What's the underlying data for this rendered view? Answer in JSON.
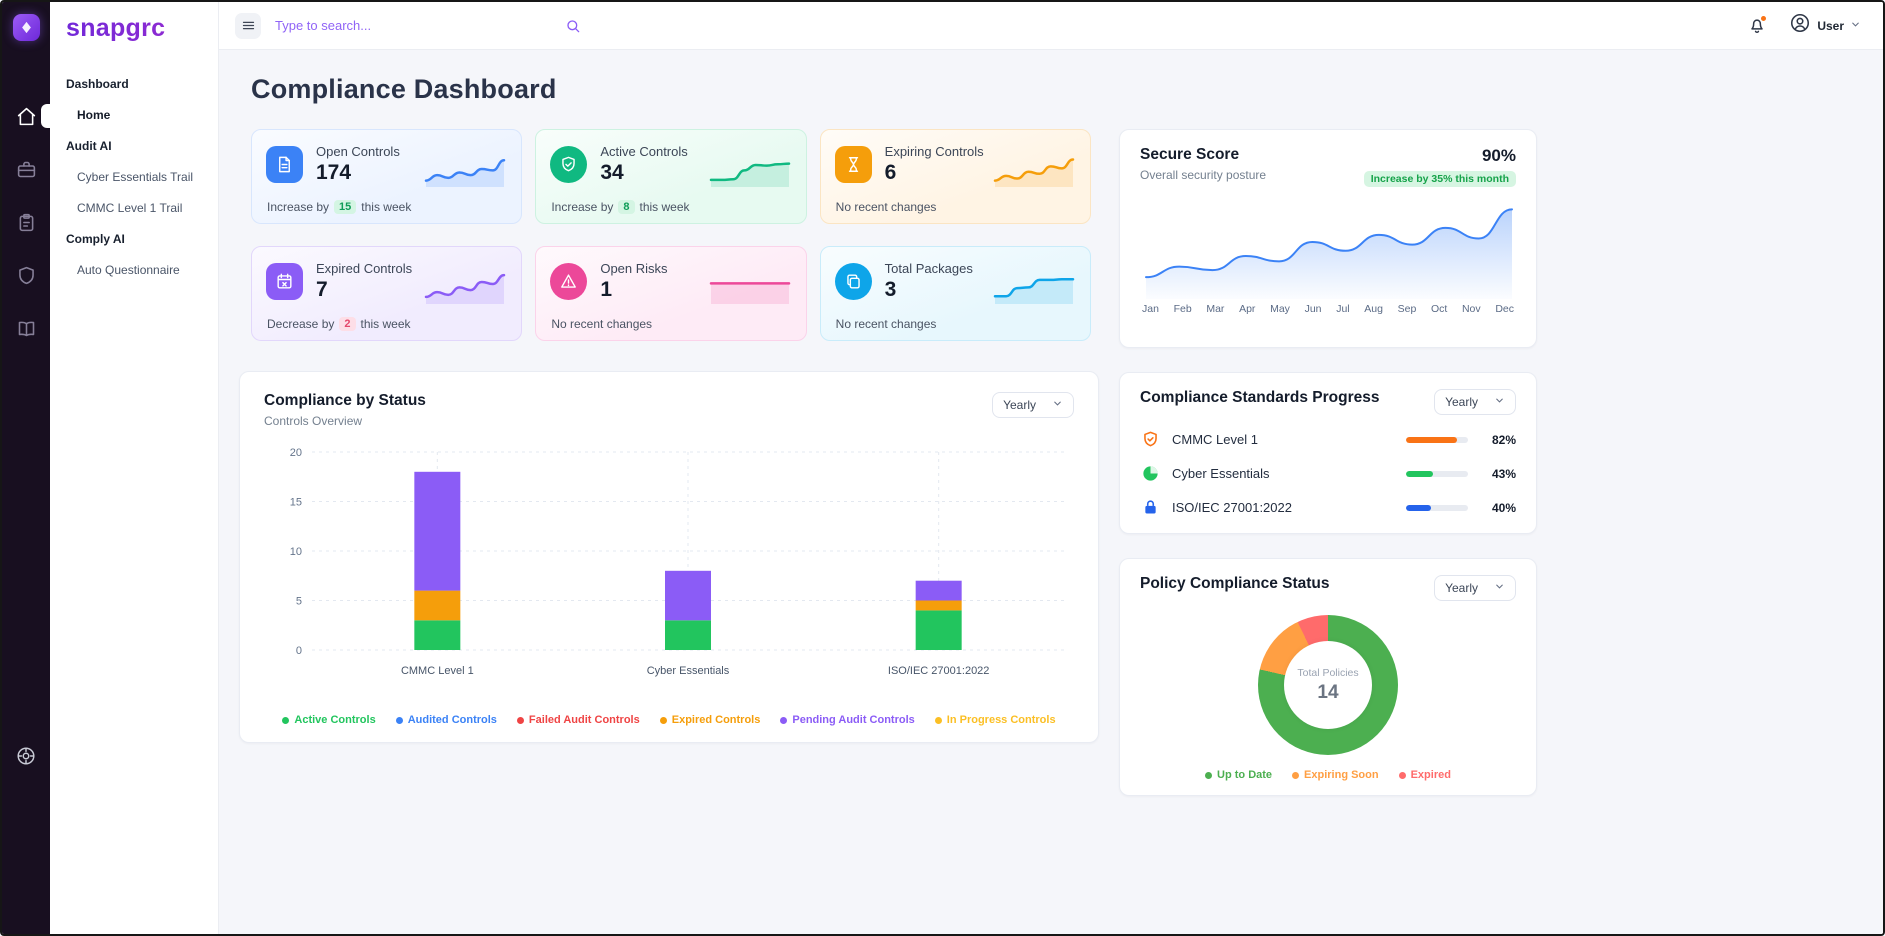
{
  "brand": {
    "name": "snapgrc"
  },
  "topbar": {
    "search_placeholder": "Type to search...",
    "user_label": "User"
  },
  "sidebar": {
    "sections": [
      {
        "header": "Dashboard",
        "items": [
          {
            "label": "Home",
            "active": true
          }
        ]
      },
      {
        "header": "Audit AI",
        "items": [
          {
            "label": "Cyber Essentials Trail",
            "active": false
          },
          {
            "label": "CMMC Level 1 Trail",
            "active": false
          }
        ]
      },
      {
        "header": "Comply AI",
        "items": [
          {
            "label": "Auto Questionnaire",
            "active": false
          }
        ]
      }
    ]
  },
  "page": {
    "title": "Compliance Dashboard"
  },
  "stat_cards": [
    {
      "label": "Open Controls",
      "value": "174",
      "change": {
        "prefix": "Increase by",
        "badge": "15",
        "suffix": "this week",
        "direction": "up"
      },
      "color": "#3b82f6",
      "bg": "#ecf3ff",
      "border": "#d8e6fd",
      "spark": [
        10,
        26,
        18,
        34,
        26,
        44,
        40,
        70
      ]
    },
    {
      "label": "Active Controls",
      "value": "34",
      "change": {
        "prefix": "Increase by",
        "badge": "8",
        "suffix": "this week",
        "direction": "up"
      },
      "color": "#10b981",
      "bg": "#e7faf1",
      "border": "#cdf2e1",
      "spark": [
        12,
        12,
        14,
        40,
        56,
        54,
        58,
        60
      ]
    },
    {
      "label": "Expiring Controls",
      "value": "6",
      "change": {
        "prefix": "No recent changes",
        "badge": "",
        "suffix": "",
        "direction": "none"
      },
      "color": "#f59e0b",
      "bg": "#fff4e4",
      "border": "#fbe5c3",
      "spark": [
        10,
        24,
        16,
        36,
        30,
        52,
        46,
        72
      ]
    },
    {
      "label": "Expired Controls",
      "value": "7",
      "change": {
        "prefix": "Decrease by",
        "badge": "2",
        "suffix": "this week",
        "direction": "down"
      },
      "color": "#8b5cf6",
      "bg": "#f1ecfe",
      "border": "#e2d7fb",
      "spark": [
        12,
        26,
        18,
        40,
        32,
        56,
        50,
        76
      ]
    },
    {
      "label": "Open Risks",
      "value": "1",
      "change": {
        "prefix": "No recent changes",
        "badge": "",
        "suffix": "",
        "direction": "none"
      },
      "color": "#ec4899",
      "bg": "#feebf6",
      "border": "#fbd3ea",
      "spark": [
        52,
        52,
        52,
        52,
        52,
        52,
        52,
        52
      ]
    },
    {
      "label": "Total Packages",
      "value": "3",
      "change": {
        "prefix": "No recent changes",
        "badge": "",
        "suffix": "",
        "direction": "none"
      },
      "color": "#0ea5e9",
      "bg": "#e7f7fd",
      "border": "#c9ecfa",
      "spark": [
        14,
        14,
        38,
        40,
        62,
        62,
        64,
        64
      ]
    }
  ],
  "secure_score": {
    "title": "Secure Score",
    "subtitle": "Overall security posture",
    "value": "90%",
    "badge": "Increase by 35% this month",
    "line_color": "#3b82f6",
    "months": [
      "Jan",
      "Feb",
      "Mar",
      "Apr",
      "May",
      "Jun",
      "Jul",
      "Aug",
      "Sep",
      "Oct",
      "Nov",
      "Dec"
    ],
    "values": [
      18,
      30,
      26,
      42,
      36,
      58,
      48,
      66,
      55,
      74,
      62,
      95
    ]
  },
  "status_chart": {
    "type": "stacked-bar",
    "title": "Compliance by Status",
    "subtitle": "Controls Overview",
    "period": "Yearly",
    "y_ticks": [
      0,
      5,
      10,
      15,
      20
    ],
    "y_max": 20,
    "categories": [
      "CMMC Level 1",
      "Cyber Essentials",
      "ISO/IEC 27001:2022"
    ],
    "series": [
      {
        "name": "Active Controls",
        "color": "#22c55e",
        "values": [
          3,
          3,
          4
        ]
      },
      {
        "name": "Audited Controls",
        "color": "#3b82f6",
        "values": [
          0,
          0,
          0
        ]
      },
      {
        "name": "Failed Audit Controls",
        "color": "#ef4444",
        "values": [
          0,
          0,
          0
        ]
      },
      {
        "name": "Expired Controls",
        "color": "#f59e0b",
        "values": [
          3,
          0,
          1
        ]
      },
      {
        "name": "Pending Audit Controls",
        "color": "#8b5cf6",
        "values": [
          12,
          5,
          2
        ]
      },
      {
        "name": "In Progress Controls",
        "color": "#fbbf24",
        "values": [
          0,
          0,
          0
        ]
      }
    ]
  },
  "standards_progress": {
    "title": "Compliance Standards Progress",
    "period": "Yearly",
    "items": [
      {
        "label": "CMMC Level 1",
        "percent": 82,
        "percent_label": "82%",
        "color": "#f97316"
      },
      {
        "label": "Cyber Essentials",
        "percent": 43,
        "percent_label": "43%",
        "color": "#22c55e"
      },
      {
        "label": "ISO/IEC 27001:2022",
        "percent": 40,
        "percent_label": "40%",
        "color": "#2563eb"
      }
    ]
  },
  "policy_status": {
    "type": "donut",
    "title": "Policy Compliance Status",
    "period": "Yearly",
    "center_label": "Total Policies",
    "center_value": "14",
    "segments": [
      {
        "label": "Up to Date",
        "value": 11,
        "color": "#4caf50"
      },
      {
        "label": "Expiring Soon",
        "value": 2,
        "color": "#ff9f43"
      },
      {
        "label": "Expired",
        "value": 1,
        "color": "#ff6b6b"
      }
    ]
  }
}
